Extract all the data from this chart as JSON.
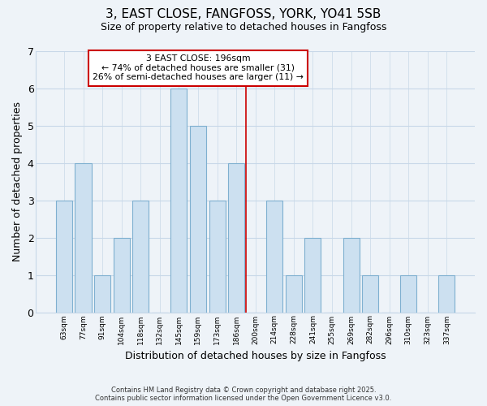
{
  "title": "3, EAST CLOSE, FANGFOSS, YORK, YO41 5SB",
  "subtitle": "Size of property relative to detached houses in Fangfoss",
  "xlabel": "Distribution of detached houses by size in Fangfoss",
  "ylabel": "Number of detached properties",
  "bar_color": "#cce0f0",
  "bar_edge_color": "#7fb0d0",
  "bin_labels": [
    "63sqm",
    "77sqm",
    "91sqm",
    "104sqm",
    "118sqm",
    "132sqm",
    "145sqm",
    "159sqm",
    "173sqm",
    "186sqm",
    "200sqm",
    "214sqm",
    "228sqm",
    "241sqm",
    "255sqm",
    "269sqm",
    "282sqm",
    "296sqm",
    "310sqm",
    "323sqm",
    "337sqm"
  ],
  "bar_heights": [
    3,
    4,
    1,
    2,
    3,
    0,
    6,
    5,
    3,
    4,
    0,
    3,
    1,
    2,
    0,
    2,
    1,
    0,
    1,
    0,
    1
  ],
  "ylim": [
    0,
    7
  ],
  "yticks": [
    0,
    1,
    2,
    3,
    4,
    5,
    6,
    7
  ],
  "vline_x": 9.5,
  "annotation_title": "3 EAST CLOSE: 196sqm",
  "annotation_line1": "← 74% of detached houses are smaller (31)",
  "annotation_line2": "26% of semi-detached houses are larger (11) →",
  "annotation_box_color": "#ffffff",
  "annotation_box_edge": "#cc0000",
  "vline_color": "#cc0000",
  "footer1": "Contains HM Land Registry data © Crown copyright and database right 2025.",
  "footer2": "Contains public sector information licensed under the Open Government Licence v3.0.",
  "background_color": "#eef3f8",
  "plot_bg_color": "#eef3f8",
  "grid_color": "#c8d8e8"
}
